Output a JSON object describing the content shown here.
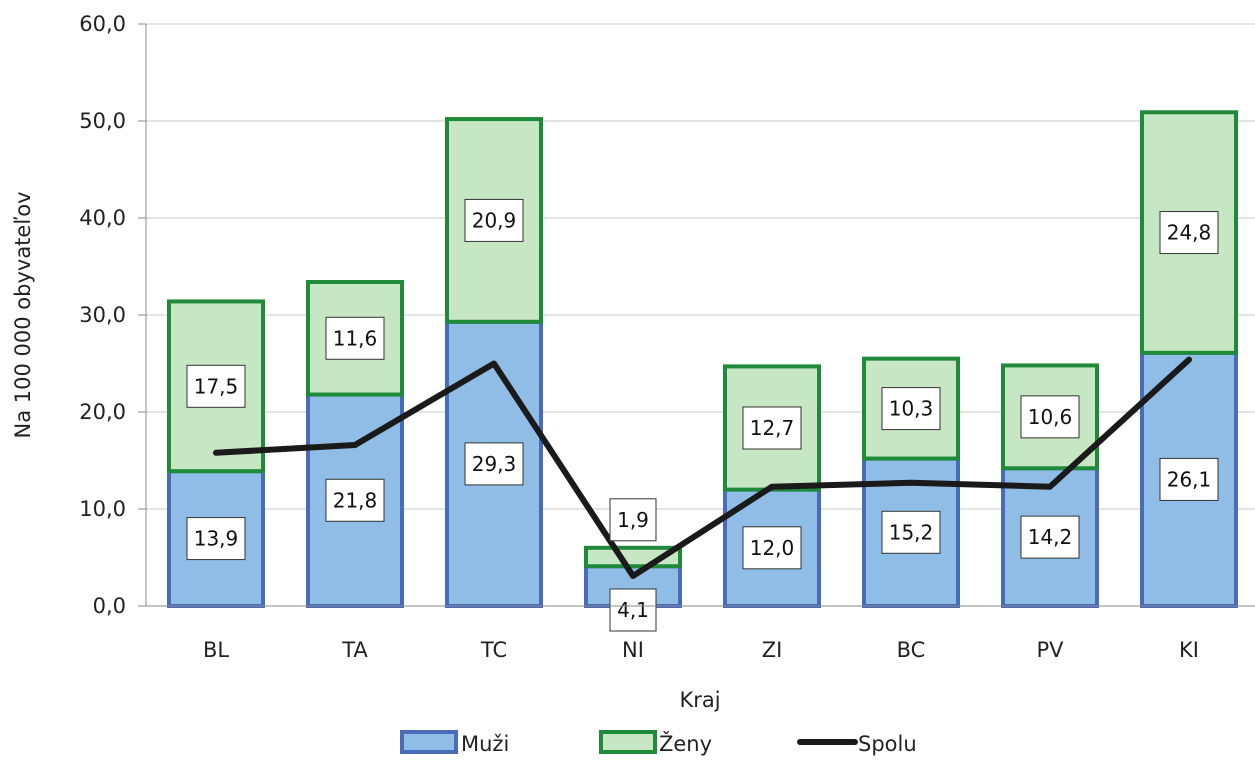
{
  "chart_data": {
    "type": "bar",
    "stacked": true,
    "categories": [
      "BL",
      "TA",
      "TC",
      "NI",
      "ZI",
      "BC",
      "PV",
      "KI"
    ],
    "series": [
      {
        "name": "Muži",
        "type": "bar",
        "fill_color": "#8fbde6",
        "stroke_color": "#4a6cb8",
        "values": [
          13.9,
          21.8,
          29.3,
          4.1,
          12.0,
          15.2,
          14.2,
          26.1
        ],
        "labels": [
          "13,9",
          "21,8",
          "29,3",
          "4,1",
          "12,0",
          "15,2",
          "14,2",
          "26,1"
        ]
      },
      {
        "name": "Ženy",
        "type": "bar",
        "fill_color": "#c7e6c3",
        "stroke_color": "#1e8a3a",
        "values": [
          17.5,
          11.6,
          20.9,
          1.9,
          12.7,
          10.3,
          10.6,
          24.8
        ],
        "labels": [
          "17,5",
          "11,6",
          "20,9",
          "1,9",
          "12,7",
          "10,3",
          "10,6",
          "24,8"
        ]
      },
      {
        "name": "Spolu",
        "type": "line",
        "color": "#1a1a1a",
        "values": [
          15.8,
          16.6,
          25.0,
          3.1,
          12.3,
          12.7,
          12.3,
          25.4
        ]
      }
    ],
    "xlabel": "Kraj",
    "ylabel": "Na 100 000 obyvateľov",
    "ylim": [
      0,
      60
    ],
    "yticks": [
      0,
      10,
      20,
      30,
      40,
      50,
      60
    ],
    "ytick_labels": [
      "0,0",
      "10,0",
      "20,0",
      "30,0",
      "40,0",
      "50,0",
      "60,0"
    ],
    "grid": true,
    "legend_position": "bottom"
  }
}
